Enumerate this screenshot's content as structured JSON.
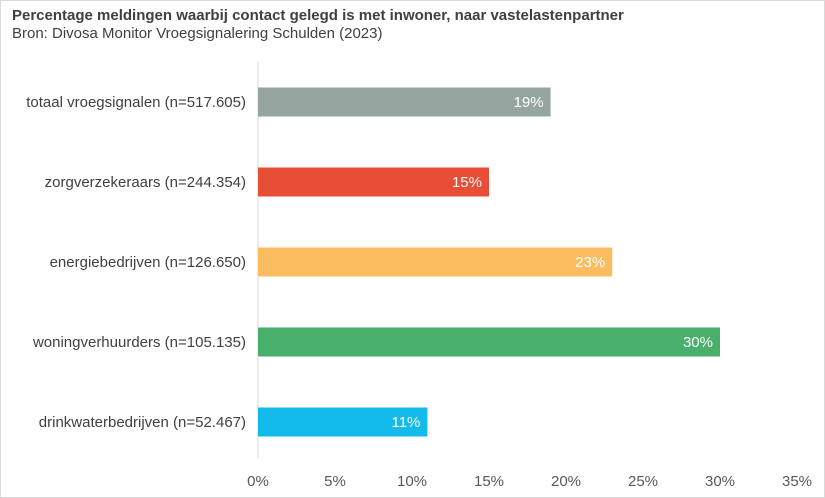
{
  "chart_data": {
    "type": "bar",
    "orientation": "horizontal",
    "title": "Percentage meldingen waarbij contact gelegd is met inwoner, naar vastelastenpartner",
    "subtitle": "Bron: Divosa Monitor Vroegsignalering Schulden (2023)",
    "xlim": [
      0,
      35
    ],
    "xticks": [
      "0%",
      "5%",
      "10%",
      "15%",
      "20%",
      "25%",
      "30%",
      "35%"
    ],
    "categories": [
      "totaal vroegsignalen (n=517.605)",
      "zorgverzekeraars (n=244.354)",
      "energiebedrijven (n=126.650)",
      "woningverhuurders (n=105.135)",
      "drinkwaterbedrijven (n=52.467)"
    ],
    "values": [
      19,
      15,
      23,
      30,
      11
    ],
    "data_labels": [
      "19%",
      "15%",
      "23%",
      "30%",
      "11%"
    ],
    "colors": [
      "#95a5a0",
      "#e84e35",
      "#fbbd5f",
      "#48b06b",
      "#12bbec"
    ],
    "grid": false,
    "legend": "none"
  }
}
